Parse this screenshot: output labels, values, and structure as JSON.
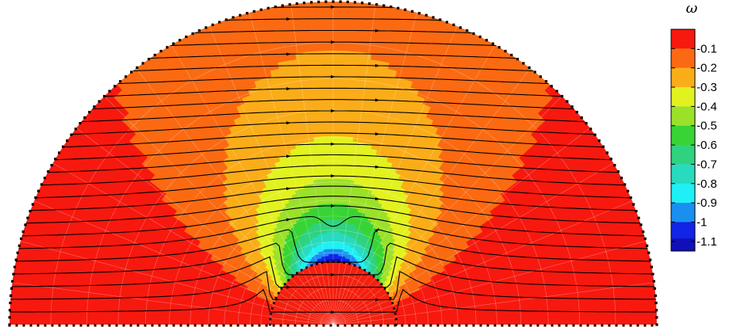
{
  "chart_data": {
    "type": "heatmap",
    "title": "",
    "colorbar": {
      "label": "ω",
      "ticks": [
        "-0.1",
        "-0.2",
        "-0.3",
        "-0.4",
        "-0.5",
        "-0.6",
        "-0.7",
        "-0.8",
        "-0.9",
        "-1",
        "-1.1"
      ],
      "tick_values": [
        -0.1,
        -0.2,
        -0.3,
        -0.4,
        -0.5,
        -0.6,
        -0.7,
        -0.8,
        -0.9,
        -1.0,
        -1.1
      ],
      "range": [
        -1.15,
        0
      ],
      "colors": [
        {
          "value": -0.05,
          "color": "#f7190f"
        },
        {
          "value": -0.15,
          "color": "#fb6a12"
        },
        {
          "value": -0.25,
          "color": "#fbad19"
        },
        {
          "value": -0.35,
          "color": "#e2f21f"
        },
        {
          "value": -0.45,
          "color": "#9be12a"
        },
        {
          "value": -0.55,
          "color": "#38d436"
        },
        {
          "value": -0.65,
          "color": "#2fd27f"
        },
        {
          "value": -0.75,
          "color": "#28dbbf"
        },
        {
          "value": -0.85,
          "color": "#1ef0f5"
        },
        {
          "value": -0.95,
          "color": "#1a8ff0"
        },
        {
          "value": -1.05,
          "color": "#1224e6"
        },
        {
          "value": -1.12,
          "color": "#1010b8"
        }
      ]
    },
    "domain": {
      "shape": "upper half annulus around a half-disk obstacle",
      "outer_radius": 1.0,
      "inner_radius": 0.195
    },
    "field": "vorticity ω, minimum ≈ -1.1 at top of obstacle, near 0 far field",
    "streamlines": {
      "count": 26,
      "direction": "left to right"
    },
    "grid": true
  }
}
